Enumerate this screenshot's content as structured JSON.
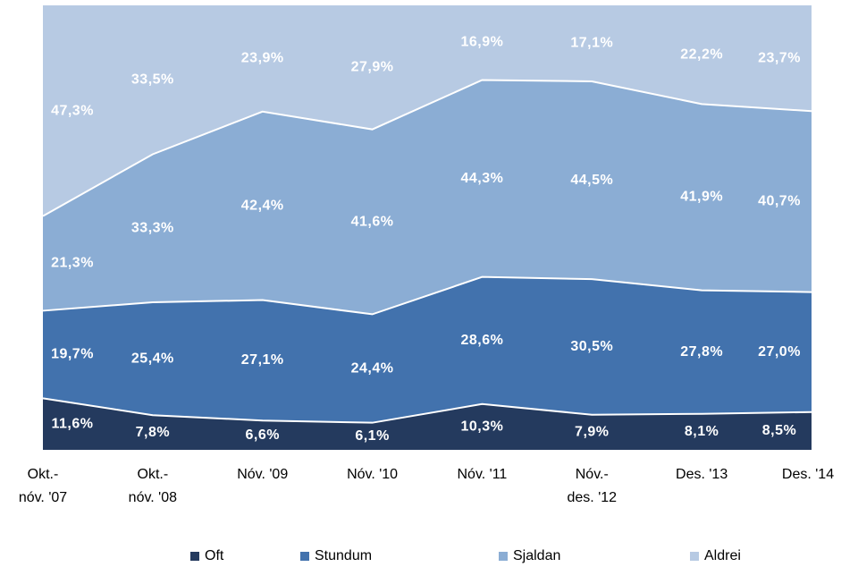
{
  "chart_data": {
    "type": "stacked_area",
    "categories": [
      [
        "Okt.-",
        "nóv. '07"
      ],
      [
        "Okt.-",
        "nóv. '08"
      ],
      [
        "Nóv. '09"
      ],
      [
        "Nóv. '10"
      ],
      [
        "Nóv. '11"
      ],
      [
        "Nóv.-",
        "des. '12"
      ],
      [
        "Des. '13"
      ],
      [
        "Des. '14"
      ]
    ],
    "ylim": [
      0,
      100
    ],
    "legend": "bottom",
    "series": [
      {
        "name": "Oft",
        "color": "#243a5e",
        "values": [
          11.6,
          7.8,
          6.6,
          6.1,
          10.3,
          7.9,
          8.1,
          8.5
        ],
        "value_labels": [
          "11,6%",
          "7,8%",
          "6,6%",
          "6,1%",
          "10,3%",
          "7,9%",
          "8,1%",
          "8,5%"
        ]
      },
      {
        "name": "Stundum",
        "color": "#4272ad",
        "values": [
          19.7,
          25.4,
          27.1,
          24.4,
          28.6,
          30.5,
          27.8,
          27.0
        ],
        "value_labels": [
          "19,7%",
          "25,4%",
          "27,1%",
          "24,4%",
          "28,6%",
          "30,5%",
          "27,8%",
          "27,0%"
        ]
      },
      {
        "name": "Sjaldan",
        "color": "#8badd4",
        "values": [
          21.3,
          33.3,
          42.4,
          41.6,
          44.3,
          44.5,
          41.9,
          40.7
        ],
        "value_labels": [
          "21,3%",
          "33,3%",
          "42,4%",
          "41,6%",
          "44,3%",
          "44,5%",
          "41,9%",
          "40,7%"
        ]
      },
      {
        "name": "Aldrei",
        "color": "#b7cae3",
        "values": [
          47.3,
          33.5,
          23.9,
          27.9,
          16.9,
          17.1,
          22.2,
          23.7
        ],
        "value_labels": [
          "47,3%",
          "33,5%",
          "23,9%",
          "27,9%",
          "16,9%",
          "17,1%",
          "22,2%",
          "23,7%"
        ]
      }
    ]
  }
}
